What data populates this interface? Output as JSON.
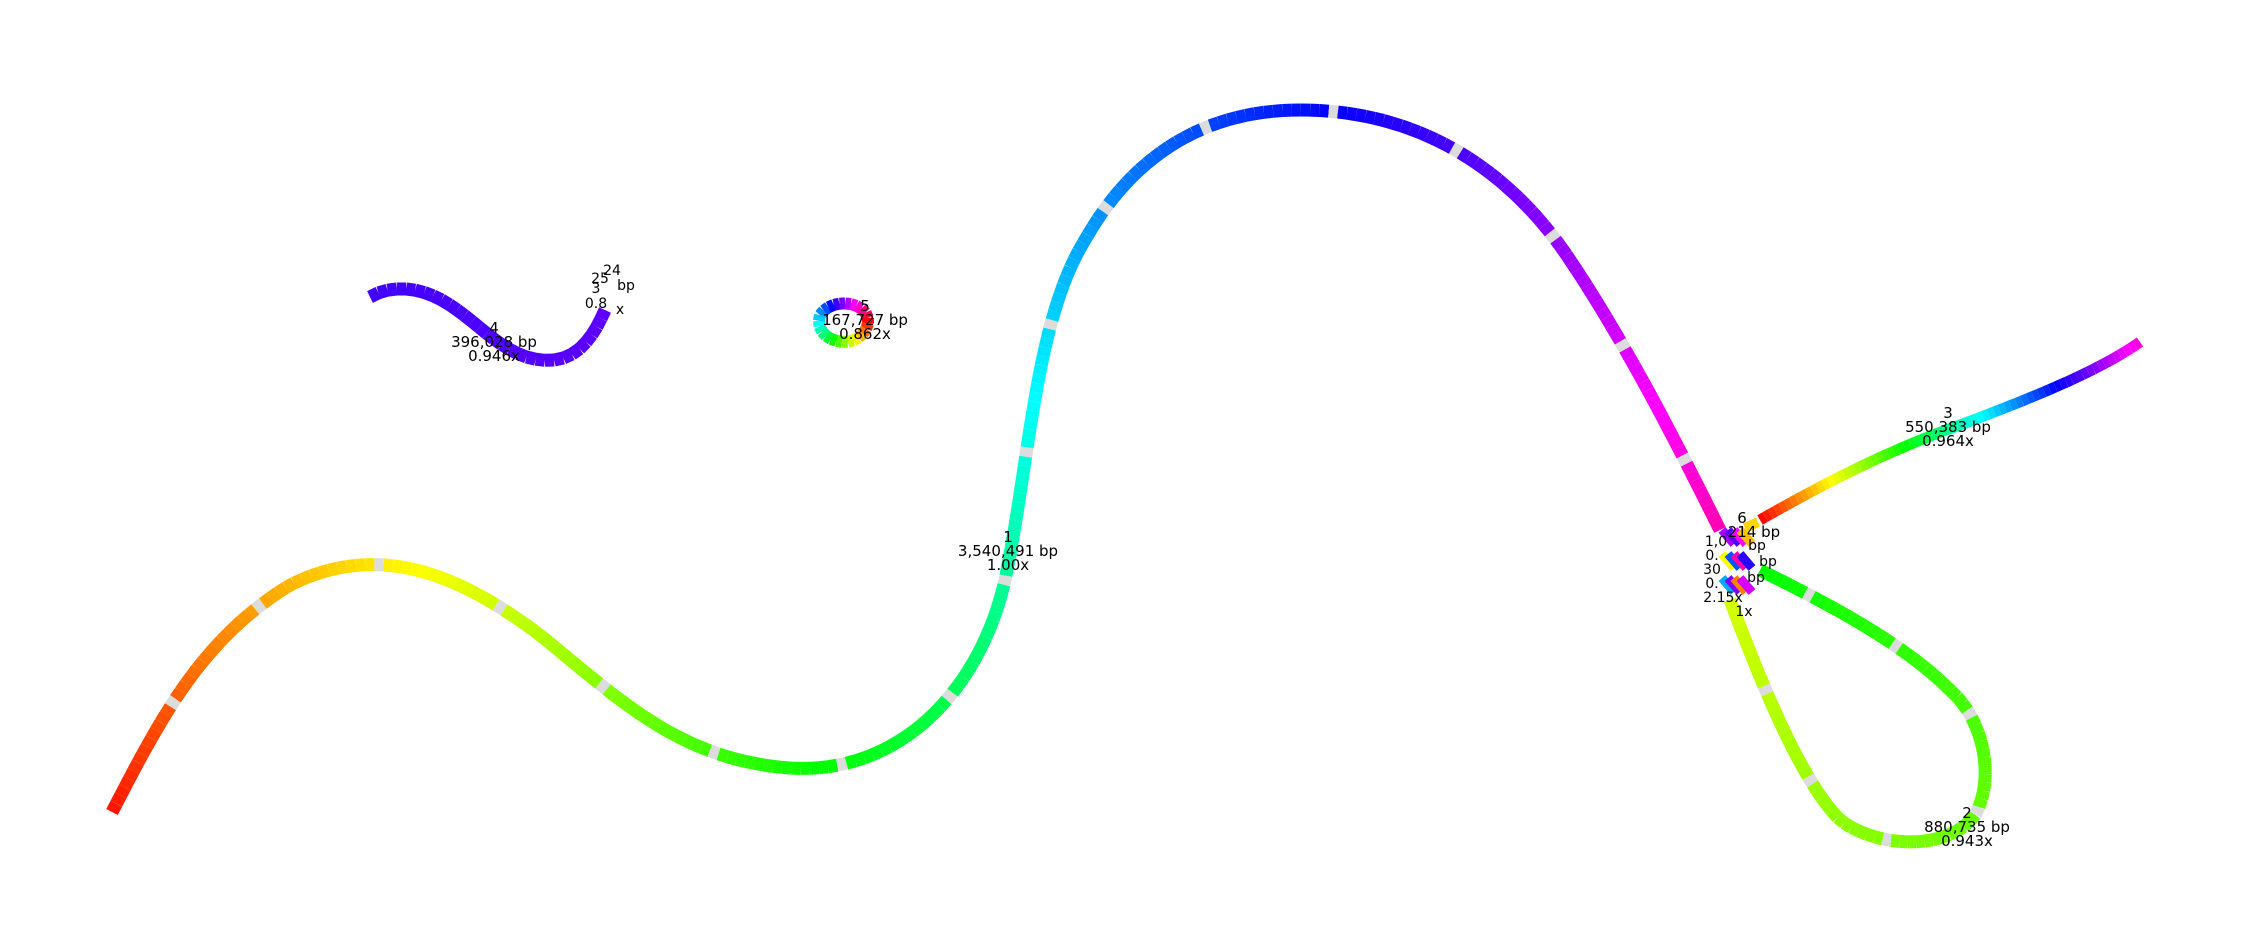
{
  "graph": {
    "contigs": [
      {
        "id": "1",
        "length": "3,540,491 bp",
        "depth": "1.00x"
      },
      {
        "id": "2",
        "length": "880,735 bp",
        "depth": "0.943x"
      },
      {
        "id": "3",
        "length": "550,383 bp",
        "depth": "0.964x"
      },
      {
        "id": "4",
        "length": "396,028 bp",
        "depth": "0.946x"
      },
      {
        "id": "5",
        "length": "167,727 bp",
        "depth": "0.862x"
      },
      {
        "id": "6",
        "length": "214 bp",
        "depth": ""
      }
    ],
    "overlapping_labels": {
      "small_cluster": [
        "24",
        "25",
        "3",
        "bp",
        "0.8",
        "x"
      ],
      "hub_cluster": [
        "1,0",
        "bp",
        "0.",
        "bp",
        "30",
        "bp",
        "0.",
        "2.15x",
        "1x"
      ]
    }
  }
}
